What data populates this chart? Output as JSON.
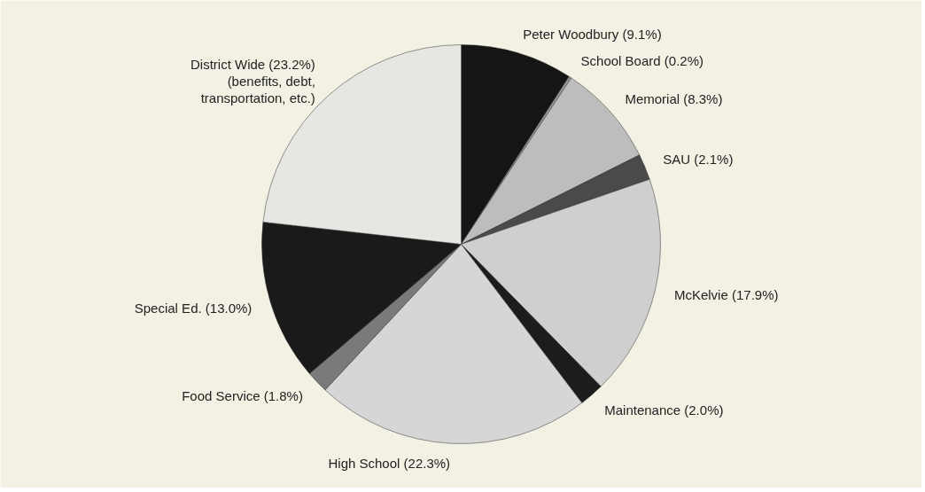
{
  "chart_data": {
    "type": "pie",
    "categories": [
      "Peter Woodbury (9.1%)",
      "School Board (0.2%)",
      "Memorial (8.3%)",
      "SAU (2.1%)",
      "McKelvie (17.9%)",
      "Maintenance (2.0%)",
      "High School (22.3%)",
      "Food Service (1.8%)",
      "Special Ed. (13.0%)",
      "District Wide (23.2%)\n(benefits, debt,\ntransportation, etc.)"
    ],
    "values": [
      9.1,
      0.2,
      8.3,
      2.1,
      17.9,
      2.0,
      22.3,
      1.8,
      13.0,
      23.2
    ],
    "colors": [
      "#151515",
      "#9a9a9a",
      "#bdbdbd",
      "#4a4a4a",
      "#cfcfcf",
      "#1c1c1c",
      "#d6d6d6",
      "#7a7a7a",
      "#1a1a1a",
      "#e6e6e2"
    ]
  }
}
